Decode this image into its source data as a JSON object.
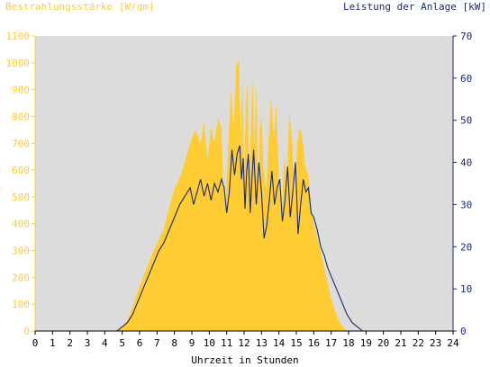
{
  "colors": {
    "irradiance": "#ffcc33",
    "power": "#1a2a6c",
    "plot_bg": "#dcdcdc",
    "left_axis": "#ffcc33",
    "right_axis": "#1a2a6c",
    "x_axis": "#000000"
  },
  "chart_data": {
    "type": "area",
    "xlabel": "Uhrzeit in Stunden",
    "ylabel_left": "Bestrahlungsstärke [W/qm]",
    "ylabel_right": "Leistung der Anlage [kW]",
    "x_ticks": [
      "0",
      "1",
      "2",
      "3",
      "4",
      "5",
      "6",
      "7",
      "8",
      "9",
      "10",
      "11",
      "12",
      "13",
      "14",
      "15",
      "16",
      "17",
      "18",
      "19",
      "20",
      "21",
      "22",
      "23",
      "24"
    ],
    "y_left_ticks": [
      "0",
      "100",
      "200",
      "300",
      "400",
      "500",
      "600",
      "700",
      "800",
      "900",
      "1000",
      "1100"
    ],
    "y_right_ticks": [
      "0",
      "10",
      "20",
      "30",
      "40",
      "50",
      "60",
      "70"
    ],
    "xlim": [
      0,
      24
    ],
    "ylim_left": [
      0,
      1100
    ],
    "ylim_right": [
      0,
      70
    ],
    "grid": false,
    "series": [
      {
        "name": "Bestrahlungsstärke [W/qm]",
        "axis": "left",
        "style": "area",
        "x": [
          0,
          4.4,
          4.8,
          5.0,
          5.3,
          5.6,
          5.9,
          6.2,
          6.5,
          6.8,
          7.1,
          7.4,
          7.7,
          8.0,
          8.3,
          8.6,
          8.9,
          9.2,
          9.5,
          9.7,
          9.9,
          10.1,
          10.3,
          10.5,
          10.7,
          10.8,
          10.95,
          11.1,
          11.25,
          11.4,
          11.55,
          11.7,
          11.82,
          11.9,
          12.0,
          12.1,
          12.2,
          12.3,
          12.4,
          12.5,
          12.6,
          12.7,
          12.8,
          12.9,
          13.0,
          13.1,
          13.25,
          13.4,
          13.55,
          13.7,
          13.85,
          14.0,
          14.15,
          14.3,
          14.45,
          14.6,
          14.75,
          14.9,
          15.05,
          15.2,
          15.35,
          15.5,
          15.7,
          15.85,
          16.0,
          16.2,
          16.4,
          16.6,
          16.8,
          17.0,
          17.3,
          17.6,
          17.9,
          18.2,
          18.5,
          18.8,
          19.1,
          19.4,
          19.7,
          20.0,
          20.4,
          24
        ],
        "y": [
          0,
          0,
          5,
          15,
          40,
          90,
          150,
          200,
          250,
          300,
          340,
          380,
          460,
          530,
          570,
          630,
          700,
          750,
          700,
          780,
          640,
          760,
          700,
          790,
          760,
          560,
          480,
          700,
          900,
          760,
          990,
          1010,
          700,
          940,
          580,
          840,
          930,
          560,
          780,
          940,
          690,
          920,
          520,
          760,
          800,
          620,
          520,
          700,
          880,
          720,
          850,
          560,
          420,
          660,
          560,
          820,
          720,
          480,
          700,
          760,
          720,
          620,
          580,
          460,
          400,
          350,
          300,
          240,
          180,
          120,
          60,
          20,
          0,
          0,
          0,
          0,
          0,
          0,
          0,
          0,
          0,
          0
        ]
      },
      {
        "name": "Leistung der Anlage [kW]",
        "axis": "right",
        "style": "line",
        "x": [
          0,
          4.7,
          5.0,
          5.3,
          5.6,
          5.9,
          6.2,
          6.5,
          6.8,
          7.1,
          7.4,
          7.7,
          8.0,
          8.3,
          8.6,
          8.9,
          9.1,
          9.3,
          9.5,
          9.7,
          9.9,
          10.1,
          10.3,
          10.5,
          10.7,
          10.85,
          11.0,
          11.15,
          11.3,
          11.45,
          11.6,
          11.75,
          11.85,
          11.95,
          12.05,
          12.15,
          12.25,
          12.35,
          12.45,
          12.55,
          12.7,
          12.85,
          13.0,
          13.15,
          13.3,
          13.45,
          13.6,
          13.75,
          13.9,
          14.05,
          14.2,
          14.35,
          14.5,
          14.65,
          14.8,
          14.95,
          15.1,
          15.25,
          15.4,
          15.55,
          15.7,
          15.85,
          16.0,
          16.2,
          16.4,
          16.6,
          16.8,
          17.0,
          17.3,
          17.6,
          17.9,
          18.2,
          18.5,
          18.8,
          19.1,
          19.4,
          19.7,
          20.0,
          24
        ],
        "y": [
          0,
          0,
          1,
          2,
          4,
          7,
          10,
          13,
          16,
          19,
          21,
          24,
          27,
          30,
          32,
          34,
          30,
          33,
          36,
          32,
          35,
          31,
          35,
          33,
          36,
          34,
          28,
          33,
          43,
          37,
          42,
          44,
          36,
          41,
          29,
          38,
          42,
          28,
          36,
          43,
          30,
          40,
          33,
          22,
          25,
          31,
          38,
          30,
          34,
          36,
          26,
          31,
          39,
          27,
          33,
          40,
          23,
          30,
          36,
          33,
          34,
          28,
          27,
          24,
          20,
          18,
          15,
          13,
          10,
          7,
          4,
          2,
          1,
          0,
          0,
          0,
          0,
          0,
          0
        ]
      }
    ]
  }
}
